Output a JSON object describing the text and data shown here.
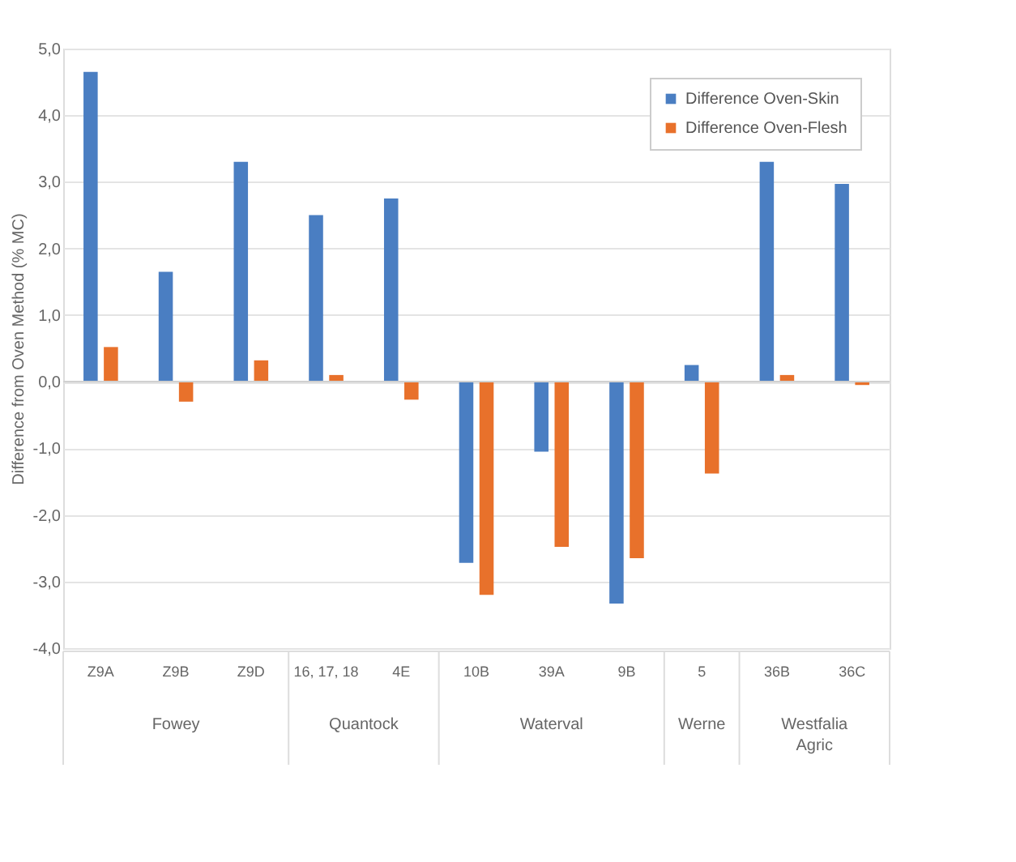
{
  "chart_data": {
    "type": "bar",
    "ylabel": "Difference from Oven Method (% MC)",
    "categories": [
      "Z9A",
      "Z9B",
      "Z9D",
      "16, 17, 18",
      "4E",
      "10B",
      "39A",
      "9B",
      "5",
      "36B",
      "36C"
    ],
    "series": [
      {
        "name": "Difference Oven-Skin",
        "color": "#4a7ec2",
        "values": [
          4.65,
          1.65,
          3.3,
          2.5,
          2.75,
          -2.72,
          -1.05,
          -3.33,
          0.25,
          3.3,
          2.97
        ]
      },
      {
        "name": "Difference Oven-Flesh",
        "color": "#e8712b",
        "values": [
          0.52,
          -0.3,
          0.32,
          0.1,
          -0.27,
          -3.2,
          -2.48,
          -2.65,
          -1.38,
          0.1,
          -0.05
        ]
      }
    ],
    "ylim": [
      -4,
      5
    ],
    "yticks": [
      {
        "value": -4,
        "label": "-4,0"
      },
      {
        "value": -3,
        "label": "-3,0"
      },
      {
        "value": -2,
        "label": "-2,0"
      },
      {
        "value": -1,
        "label": "-1,0"
      },
      {
        "value": 0,
        "label": "0,0"
      },
      {
        "value": 1,
        "label": "1,0"
      },
      {
        "value": 2,
        "label": "2,0"
      },
      {
        "value": 3,
        "label": "3,0"
      },
      {
        "value": 4,
        "label": "4,0"
      },
      {
        "value": 5,
        "label": "5,0"
      }
    ],
    "annotations": [
      "Fowey",
      "Quantock",
      "Waterval",
      "Werne",
      "Westfalia Agric"
    ],
    "grid": "y",
    "legend": "top right"
  }
}
